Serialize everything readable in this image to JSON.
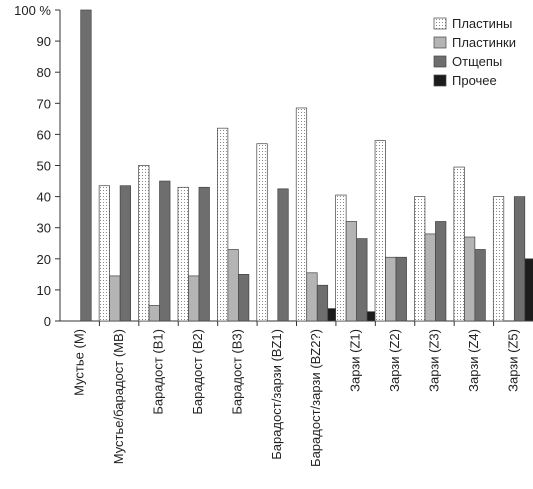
{
  "chart_data": {
    "type": "bar",
    "title": "",
    "xlabel": "",
    "ylabel": "",
    "ylim": [
      0,
      100
    ],
    "yticks": [
      0,
      10,
      20,
      30,
      40,
      50,
      60,
      70,
      80,
      90,
      100
    ],
    "ytick_labels": [
      "0",
      "10",
      "20",
      "30",
      "40",
      "50",
      "60",
      "70",
      "80",
      "90",
      "100 %"
    ],
    "grid": false,
    "legend_position": "top-right",
    "categories": [
      "Мустье (M)",
      "Мустье/барадост (MB)",
      "Барадост (B1)",
      "Барадост (B2)",
      "Барадост (B3)",
      "Барадост/зарзи (BZ1)",
      "Барадост/зарзи (BZ2?)",
      "Зарзи (Z1)",
      "Зарзи (Z2)",
      "Зарзи (Z3)",
      "Зарзи (Z4)",
      "Зарзи (Z5)"
    ],
    "series": [
      {
        "name": "Пластины",
        "style": "dotted",
        "color": "#f4f4f4",
        "values": [
          0,
          43.5,
          50,
          43,
          62,
          57,
          68.5,
          40.5,
          58,
          40,
          49.5,
          40
        ]
      },
      {
        "name": "Пластинки",
        "style": "solid",
        "color": "#b4b4b4",
        "values": [
          0,
          14.5,
          5,
          14.5,
          23,
          0,
          15.5,
          32,
          20.5,
          28,
          27,
          0
        ]
      },
      {
        "name": "Отщепы",
        "style": "solid",
        "color": "#6e6e6e",
        "values": [
          100,
          43.5,
          45,
          43,
          15,
          42.5,
          11.5,
          26.5,
          20.5,
          32,
          23,
          40
        ]
      },
      {
        "name": "Прочее",
        "style": "solid",
        "color": "#1c1c1c",
        "values": [
          0,
          0,
          0,
          0,
          0,
          0,
          4,
          3,
          0,
          0,
          0,
          20
        ]
      }
    ]
  }
}
